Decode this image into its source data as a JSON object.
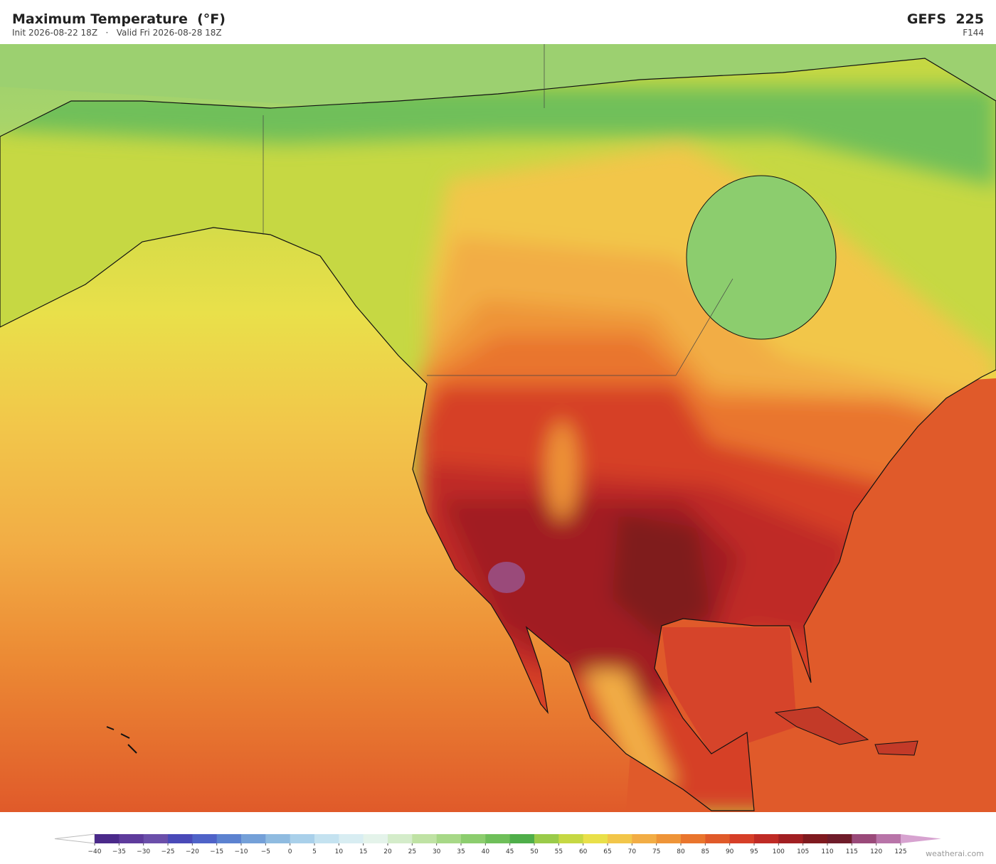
{
  "header": {
    "title": "Maximum Temperature  (°F)",
    "subtitle": "Init 2026-08-22 18Z   ·   Valid Fri 2026-08-28 18Z",
    "model": "GEFS  225",
    "forecast_hour": "F144"
  },
  "colorbar": {
    "ticks": [
      {
        "value": -40,
        "label": "−40"
      },
      {
        "value": -35,
        "label": "−35"
      },
      {
        "value": -30,
        "label": "−30"
      },
      {
        "value": -25,
        "label": "−25"
      },
      {
        "value": -20,
        "label": "−20"
      },
      {
        "value": -15,
        "label": "−15"
      },
      {
        "value": -10,
        "label": "−10"
      },
      {
        "value": -5,
        "label": "−5"
      },
      0,
      5,
      10,
      15,
      20,
      25,
      30,
      35,
      40,
      45,
      50,
      55,
      60,
      65,
      70,
      75,
      80,
      85,
      90,
      95,
      100,
      105,
      110,
      115,
      120,
      125
    ],
    "colors": [
      "#4b2a8a",
      "#5e3b9c",
      "#6b4faa",
      "#4a4ab8",
      "#4f63c8",
      "#5c82d0",
      "#74a0d8",
      "#8fbbe0",
      "#a9d0ea",
      "#c4e2f0",
      "#d8edf2",
      "#e4f3ea",
      "#d4ecca",
      "#bfe2a4",
      "#a7d887",
      "#8ccd6e",
      "#6fbf5a",
      "#4fae4a",
      "#9acb4a",
      "#c6d843",
      "#e9e04a",
      "#f2c64a",
      "#f2ad45",
      "#ee9438",
      "#e9752d",
      "#e05a2a",
      "#d63f28",
      "#bf2b25",
      "#a11f22",
      "#7f1a1f",
      "#6f1c2a",
      "#9a4a7a",
      "#b874a8"
    ],
    "over_color": "#d7a3d0"
  },
  "footer": {
    "credit": "weatherai.com"
  }
}
